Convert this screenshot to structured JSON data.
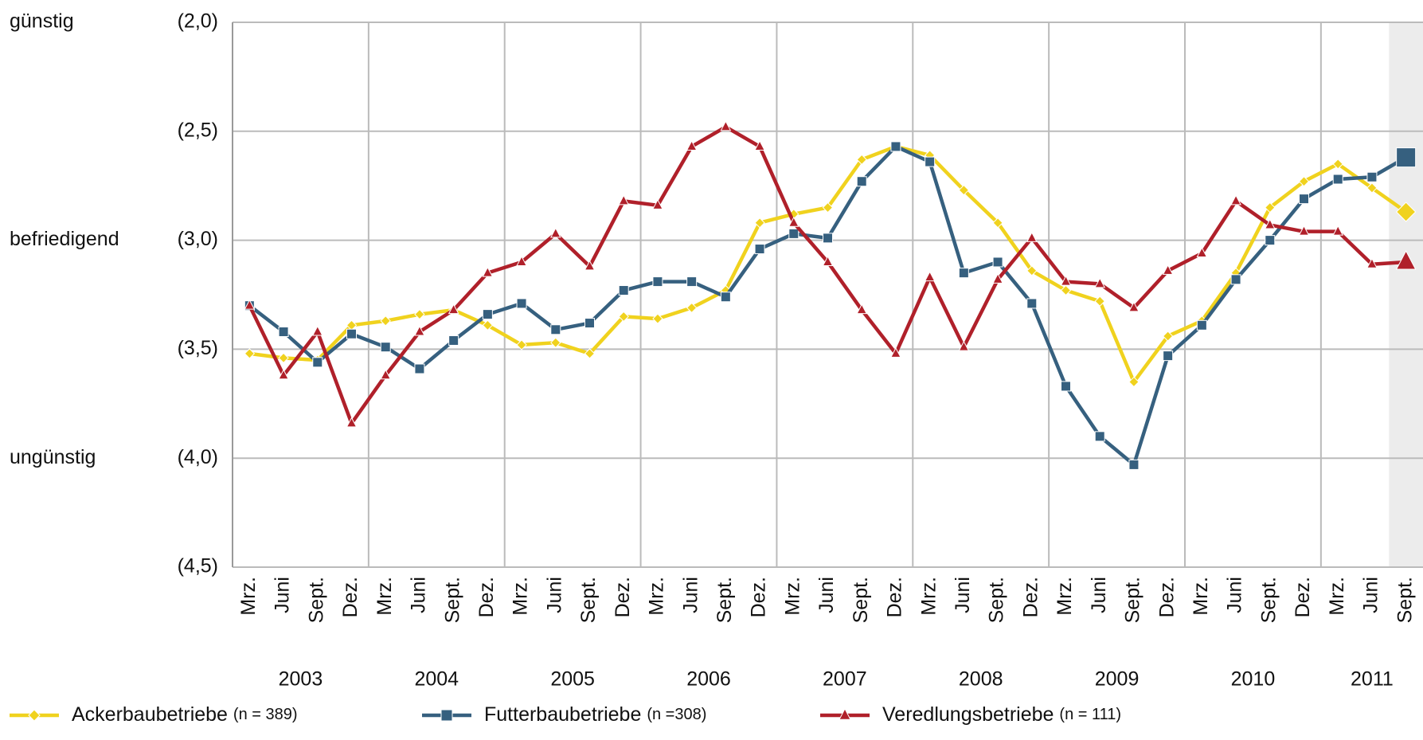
{
  "chart_data": {
    "type": "line",
    "categories": [
      "Mrz.",
      "Juni",
      "Sept.",
      "Dez.",
      "Mrz.",
      "Juni",
      "Sept.",
      "Dez.",
      "Mrz.",
      "Juni",
      "Sept.",
      "Dez.",
      "Mrz.",
      "Juni",
      "Sept.",
      "Dez.",
      "Mrz.",
      "Juni",
      "Sept.",
      "Dez.",
      "Mrz.",
      "Juni",
      "Sept.",
      "Dez.",
      "Mrz.",
      "Juni",
      "Sept.",
      "Dez.",
      "Mrz.",
      "Juni",
      "Sept.",
      "Dez.",
      "Mrz.",
      "Juni",
      "Sept."
    ],
    "years": [
      "2003",
      "2004",
      "2005",
      "2006",
      "2007",
      "2008",
      "2009",
      "2010",
      "2011"
    ],
    "ylim": [
      2,
      4.5
    ],
    "inverted_y": true,
    "yticks": [
      {
        "value": 2,
        "label": "(2,0)"
      },
      {
        "value": 2.5,
        "label": "(2,5)"
      },
      {
        "value": 3,
        "label": "(3,0)"
      },
      {
        "value": 3.5,
        "label": "(3,5)"
      },
      {
        "value": 4,
        "label": "(4,0)"
      },
      {
        "value": 4.5,
        "label": "(4,5)"
      }
    ],
    "y_annotations": [
      {
        "value": 2,
        "label": "günstig"
      },
      {
        "value": 3,
        "label": "befriedigend"
      },
      {
        "value": 4,
        "label": "ungünstig"
      }
    ],
    "grid": true,
    "series": [
      {
        "name": "Ackerbaubetriebe",
        "n_label": "(n = 389)",
        "color": "#f0d21e",
        "marker": "diamond",
        "values": [
          3.52,
          3.54,
          3.55,
          3.39,
          3.37,
          3.34,
          3.32,
          3.39,
          3.48,
          3.47,
          3.52,
          3.35,
          3.36,
          3.31,
          3.23,
          2.92,
          2.88,
          2.85,
          2.63,
          2.57,
          2.61,
          2.77,
          2.92,
          3.14,
          3.23,
          3.28,
          3.65,
          3.44,
          3.37,
          3.15,
          2.85,
          2.73,
          2.65,
          2.76,
          2.87
        ]
      },
      {
        "name": "Futterbaubetriebe",
        "n_label": "(n =308)",
        "color": "#36607f",
        "marker": "square",
        "values": [
          3.3,
          3.42,
          3.56,
          3.43,
          3.49,
          3.59,
          3.46,
          3.34,
          3.29,
          3.41,
          3.38,
          3.23,
          3.19,
          3.19,
          3.26,
          3.04,
          2.97,
          2.99,
          2.73,
          2.57,
          2.64,
          3.15,
          3.1,
          3.29,
          3.67,
          3.9,
          4.03,
          3.53,
          3.39,
          3.18,
          3.0,
          2.81,
          2.72,
          2.71,
          2.62
        ]
      },
      {
        "name": "Veredlungsbetriebe",
        "n_label": "(n = 111)",
        "color": "#b0202a",
        "marker": "triangle",
        "values": [
          3.3,
          3.62,
          3.42,
          3.84,
          3.62,
          3.42,
          3.32,
          3.15,
          3.1,
          2.97,
          3.12,
          2.82,
          2.84,
          2.57,
          2.48,
          2.57,
          2.92,
          3.1,
          3.32,
          3.52,
          3.17,
          3.49,
          3.18,
          2.99,
          3.19,
          3.2,
          3.31,
          3.14,
          3.06,
          2.82,
          2.93,
          2.96,
          2.96,
          3.11,
          3.1
        ]
      }
    ]
  }
}
